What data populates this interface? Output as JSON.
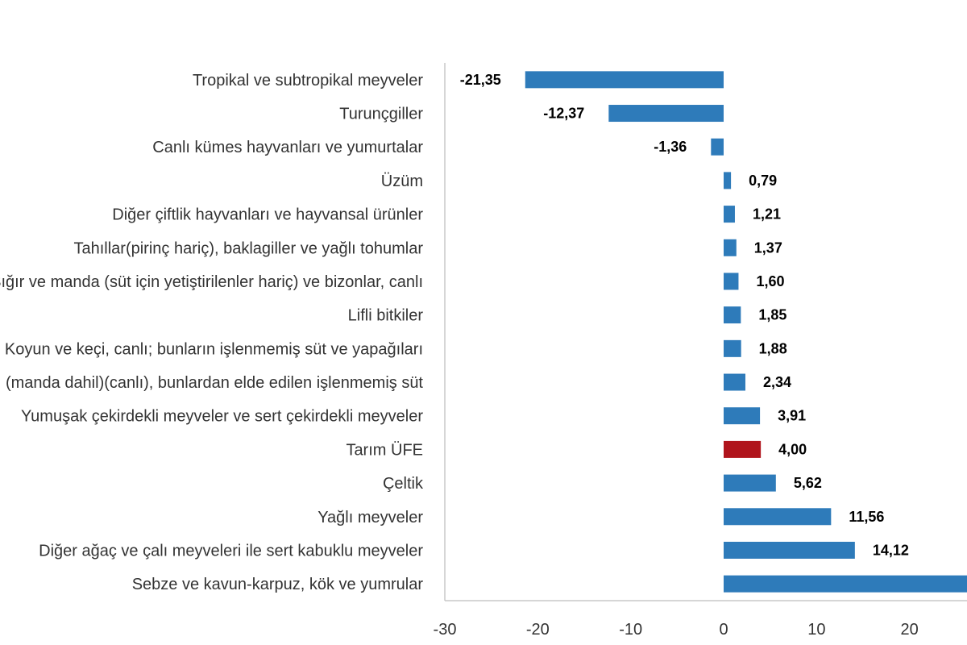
{
  "chart_data": {
    "type": "bar",
    "orientation": "horizontal",
    "categories": [
      "Tropikal ve subtropikal meyveler",
      "Turunçgiller",
      "Canlı kümes hayvanları ve yumurtalar",
      "Üzüm",
      "Diğer çiftlik hayvanları ve hayvansal ürünler",
      "Tahıllar(pirinç hariç), baklagiller ve yağlı tohumlar",
      "Sığır ve manda (süt için yetiştirilenler hariç) ve bizonlar, canlı",
      "Lifli bitkiler",
      "Koyun ve keçi, canlı; bunların işlenmemiş süt ve yapağıları",
      "Süt sığırı (manda dahil)(canlı), bunlardan elde edilen işlenmemiş süt",
      "Yumuşak çekirdekli meyveler ve sert çekirdekli meyveler",
      "Tarım ÜFE",
      "Çeltik",
      "Yağlı meyveler",
      "Diğer ağaç ve çalı meyveleri ile sert kabuklu meyveler",
      "Sebze ve kavun-karpuz, kök ve yumrular"
    ],
    "values": [
      -21.35,
      -12.37,
      -1.36,
      0.79,
      1.21,
      1.37,
      1.6,
      1.85,
      1.88,
      2.34,
      3.91,
      4.0,
      5.62,
      11.56,
      14.12,
      27.0
    ],
    "value_labels": [
      "-21,35",
      "-12,37",
      "-1,36",
      "0,79",
      "1,21",
      "1,37",
      "1,60",
      "1,85",
      "1,88",
      "2,34",
      "3,91",
      "4,00",
      "5,62",
      "11,56",
      "14,12",
      ""
    ],
    "highlight_index": 11,
    "xlim": [
      -30,
      30
    ],
    "x_ticks": [
      -30,
      -20,
      -10,
      0,
      10,
      20
    ],
    "x_tick_labels": [
      "-30",
      "-20",
      "-10",
      "0",
      "10",
      "20"
    ],
    "colors": {
      "bar": "#2E7BBA",
      "highlight": "#B0141C",
      "axis": "#C8C8C8"
    },
    "grid": false,
    "legend": "none"
  }
}
